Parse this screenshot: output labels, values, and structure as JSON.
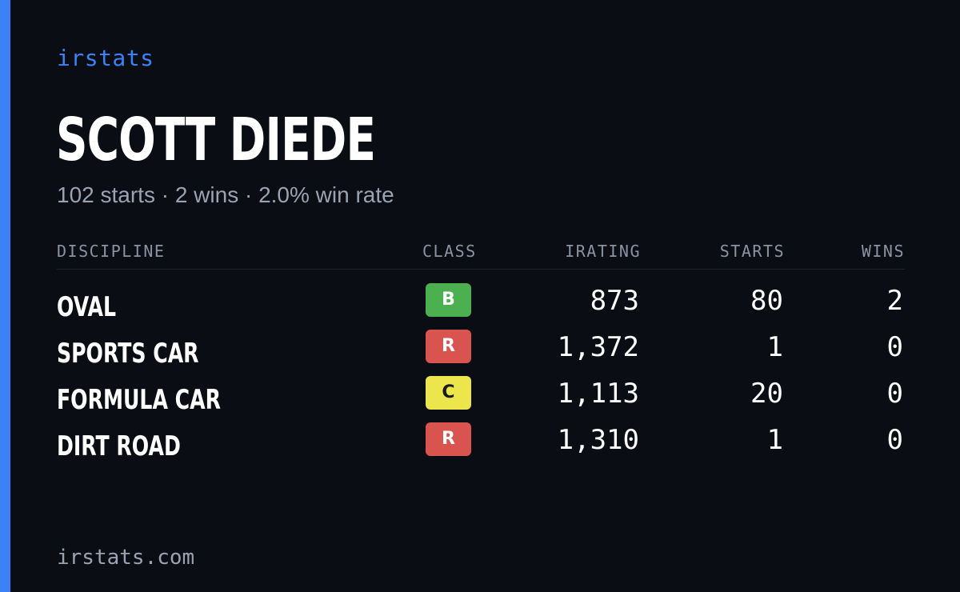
{
  "brand": "irstats",
  "driver": {
    "name": "SCOTT DIEDE",
    "summary": "102 starts · 2 wins · 2.0% win rate"
  },
  "table": {
    "headers": {
      "discipline": "DISCIPLINE",
      "class": "CLASS",
      "irating": "IRATING",
      "starts": "STARTS",
      "wins": "WINS"
    },
    "rows": [
      {
        "discipline": "OVAL",
        "class": "B",
        "class_color": "#4caf50",
        "class_text_color": "#ffffff",
        "irating": "873",
        "starts": "80",
        "wins": "2"
      },
      {
        "discipline": "SPORTS CAR",
        "class": "R",
        "class_color": "#d9534f",
        "class_text_color": "#ffffff",
        "irating": "1,372",
        "starts": "1",
        "wins": "0"
      },
      {
        "discipline": "FORMULA CAR",
        "class": "C",
        "class_color": "#ece54b",
        "class_text_color": "#1a1a1a",
        "irating": "1,113",
        "starts": "20",
        "wins": "0"
      },
      {
        "discipline": "DIRT ROAD",
        "class": "R",
        "class_color": "#d9534f",
        "class_text_color": "#ffffff",
        "irating": "1,310",
        "starts": "1",
        "wins": "0"
      }
    ]
  },
  "footer": "irstats.com",
  "colors": {
    "accent": "#3b82f6",
    "background": "#0b0d14",
    "muted_text": "#9aa3b2"
  }
}
